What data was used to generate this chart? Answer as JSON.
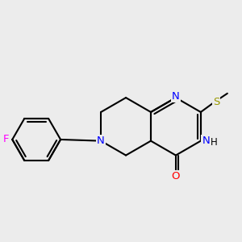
{
  "background_color": "#ececec",
  "atom_colors": {
    "C": "#000000",
    "N": "#0000ff",
    "O": "#ff0000",
    "F": "#ff00ff",
    "S": "#999900",
    "H": "#000000"
  },
  "bond_color": "#000000",
  "bond_width": 1.5,
  "figsize": [
    3.0,
    3.0
  ],
  "dpi": 100
}
